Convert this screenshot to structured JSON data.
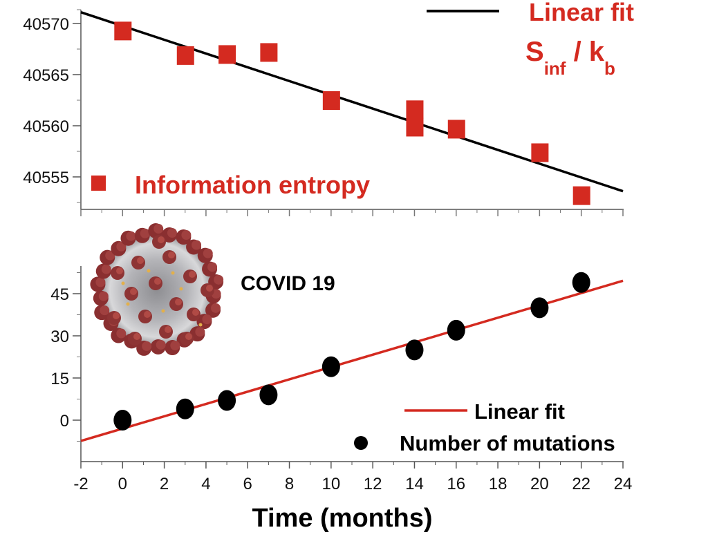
{
  "chart_data": [
    {
      "id": "top",
      "type": "scatter",
      "title": "",
      "xlabel": "",
      "ylabel": "",
      "xlim": [
        -2,
        24
      ],
      "ylim": [
        40552,
        40571
      ],
      "yticks": [
        40555,
        40560,
        40565,
        40570
      ],
      "ytick_labels": [
        "40555",
        "40560",
        "40565",
        "40570"
      ],
      "grid": false,
      "series": [
        {
          "name": "Information entropy",
          "marker": "square",
          "color": "#d42a20",
          "x": [
            0,
            3,
            5,
            7,
            10,
            14,
            14,
            16,
            20,
            22
          ],
          "y": [
            40569.3,
            40566.9,
            40567.0,
            40567.2,
            40562.5,
            40561.6,
            40559.9,
            40559.7,
            40557.4,
            40553.2
          ]
        },
        {
          "name": "Linear fit",
          "type": "line",
          "color": "#000000",
          "x": [
            -2,
            24
          ],
          "y": [
            40571.1,
            40553.6
          ]
        }
      ],
      "legend": {
        "placement": "top-right / bottom-left",
        "fit_label": "Linear fit",
        "fit_sub_main": "S",
        "fit_sub_1": "inf",
        "fit_sub_sep": " / k",
        "fit_sub_2": "b",
        "points_label": "Information entropy"
      }
    },
    {
      "id": "bottom",
      "type": "scatter",
      "title": "",
      "xlabel": "Time (months)",
      "ylabel": "",
      "xlim": [
        -2,
        24
      ],
      "xticks": [
        -2,
        0,
        2,
        4,
        6,
        8,
        10,
        12,
        14,
        16,
        18,
        20,
        22,
        24
      ],
      "xtick_labels": [
        "-2",
        "0",
        "2",
        "4",
        "6",
        "8",
        "10",
        "12",
        "14",
        "16",
        "18",
        "20",
        "22",
        "24"
      ],
      "ylim": [
        -15,
        55
      ],
      "yticks": [
        0,
        15,
        30,
        45
      ],
      "ytick_labels": [
        "0",
        "15",
        "30",
        "45"
      ],
      "grid": false,
      "series": [
        {
          "name": "Number of mutations",
          "marker": "circle",
          "color": "#000000",
          "x": [
            0,
            3,
            5,
            7,
            10,
            14,
            16,
            20,
            22
          ],
          "y": [
            0,
            4,
            7,
            9,
            19,
            25,
            32,
            40,
            49
          ]
        },
        {
          "name": "Linear fit",
          "type": "line",
          "color": "#d42a20",
          "x": [
            -2,
            24
          ],
          "y": [
            -7.4,
            49.6
          ]
        }
      ],
      "legend": {
        "placement": "bottom-right",
        "fit_label": "Linear fit",
        "points_label": "Number of mutations"
      },
      "annotation": "COVID 19",
      "image": "coronavirus-illustration"
    }
  ]
}
